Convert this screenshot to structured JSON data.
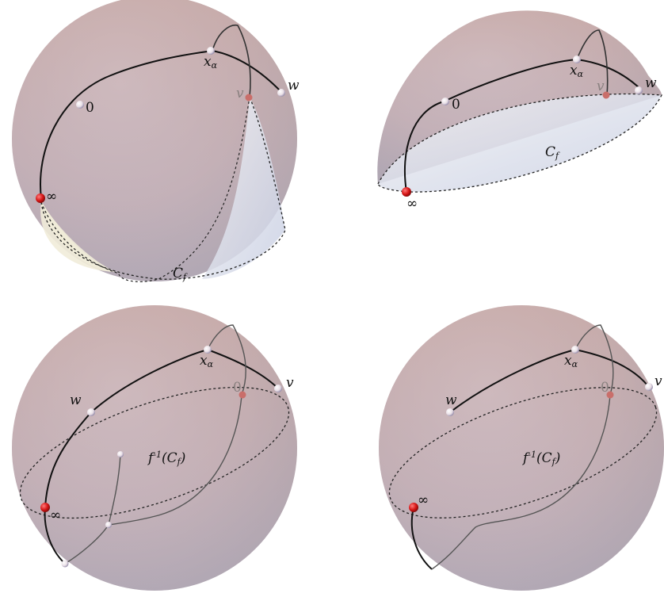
{
  "panels": [
    {
      "id": "top-left",
      "labels": {
        "x_alpha": "x",
        "alpha": "α",
        "w": "w",
        "v": "v",
        "zero": "0",
        "infinity": "∞",
        "c": "C",
        "f": "f"
      }
    },
    {
      "id": "top-right",
      "labels": {
        "x_alpha": "x",
        "alpha": "α",
        "w": "w",
        "v": "v",
        "zero": "0",
        "infinity": "∞",
        "c": "C",
        "f": "f"
      }
    },
    {
      "id": "bottom-left",
      "labels": {
        "x_alpha": "x",
        "alpha": "α",
        "w": "w",
        "v": "v",
        "zero": "0",
        "infinity": "∞",
        "finv": "f",
        "sup": "-1",
        "paren_open": "(C",
        "f": "f",
        "paren_close": ")"
      }
    },
    {
      "id": "bottom-right",
      "labels": {
        "x_alpha": "x",
        "alpha": "α",
        "w": "w",
        "v": "v",
        "zero": "0",
        "infinity": "∞",
        "finv": "f",
        "sup": "-1",
        "paren_open": "(C",
        "f": "f",
        "paren_close": ")"
      }
    }
  ],
  "colors": {
    "sphere_top": "#c9a9a4",
    "sphere_bottom": "#b9b3c6",
    "marker_red": "#d41414",
    "cap_face": "#e4edf3"
  }
}
